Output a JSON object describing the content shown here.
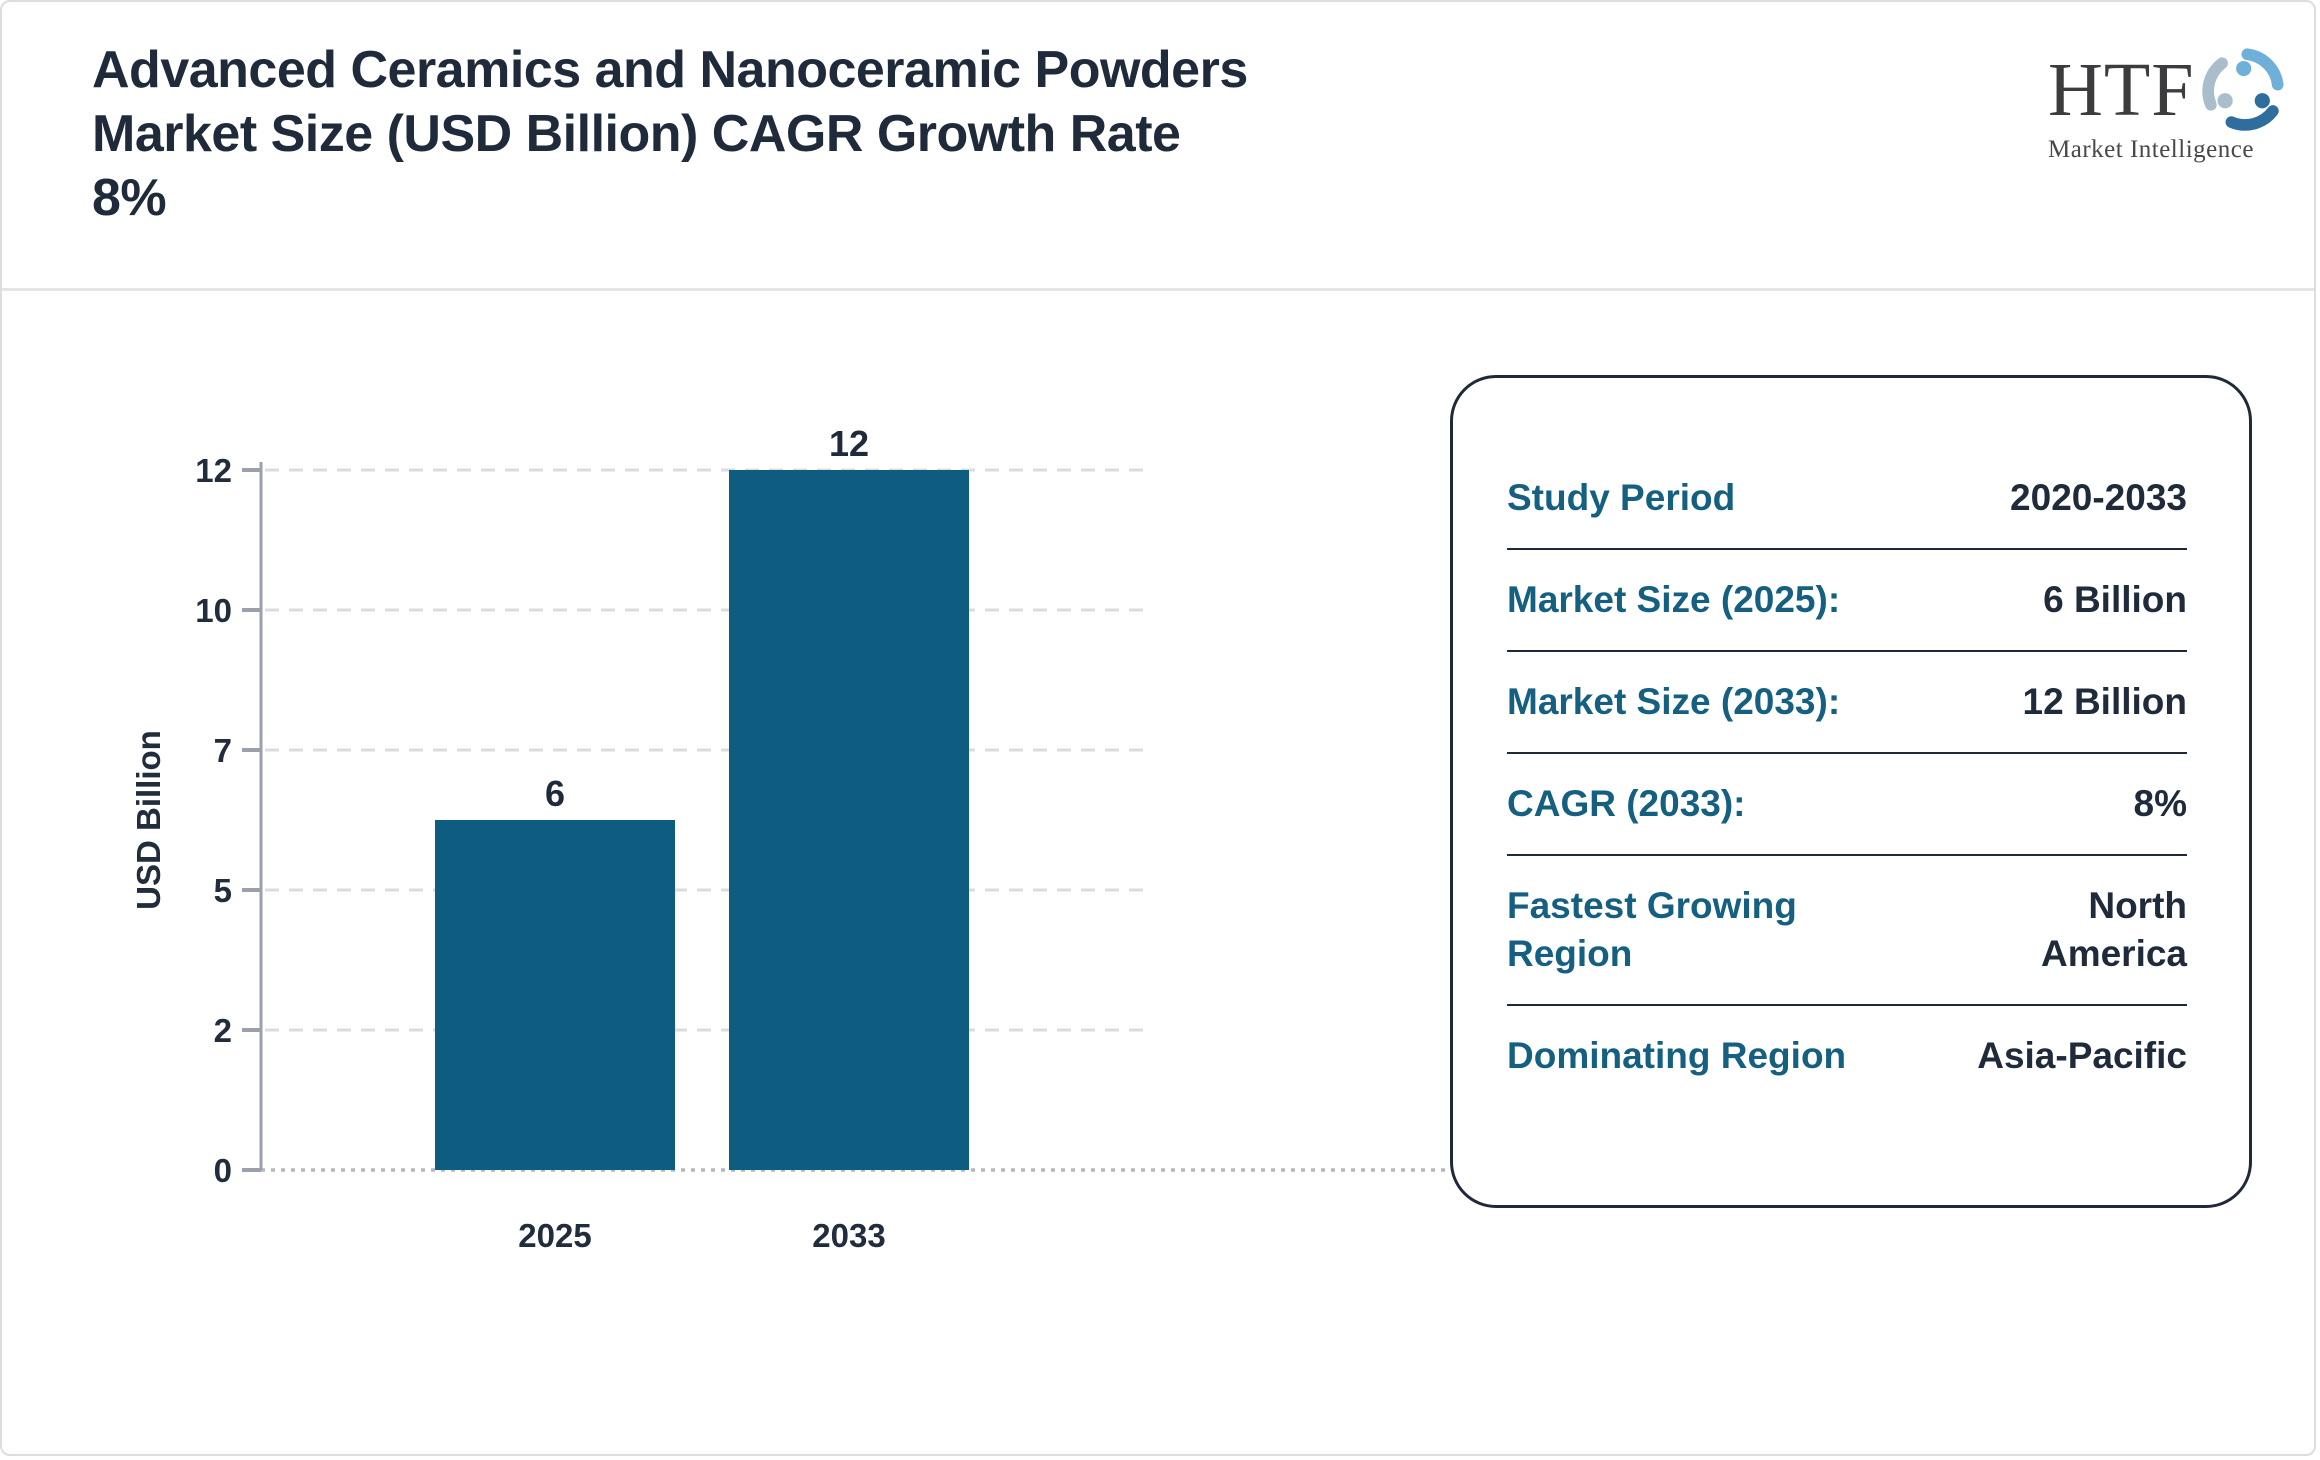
{
  "header": {
    "title_lines": [
      "Advanced Ceramics and Nanoceramic Powders",
      "Market Size (USD Billion) CAGR Growth Rate",
      "8%"
    ],
    "logo": {
      "brand": "HTF",
      "tagline": "Market Intelligence",
      "icon": "swirl-figures-icon"
    }
  },
  "chart_data": {
    "type": "bar",
    "title": "",
    "categories": [
      "2025",
      "2033"
    ],
    "values": [
      6,
      12
    ],
    "value_labels": [
      "6",
      "12"
    ],
    "xlabel": "",
    "ylabel": "USD Billion",
    "yticks": [
      0,
      2,
      5,
      7,
      10,
      12
    ],
    "ylim": [
      0,
      12
    ],
    "grid": "horizontal-dashed",
    "legend": "none",
    "bar_color": "#0e5c80"
  },
  "info_card": {
    "rows": [
      {
        "label": "Study Period",
        "value": "2020-2033"
      },
      {
        "label": "Market Size (2025):",
        "value": "6 Billion"
      },
      {
        "label": "Market Size (2033):",
        "value": "12 Billion"
      },
      {
        "label": "CAGR (2033):",
        "value": "8%"
      },
      {
        "label": "Fastest Growing Region",
        "value": "North America"
      },
      {
        "label": "Dominating Region",
        "value": "Asia-Pacific"
      }
    ]
  },
  "colors": {
    "bar": "#0e5c80",
    "card_label": "#155f81",
    "text_navy": "#1f2a3a",
    "axis_gray": "#9aa1ac",
    "gridline": "#dbdcdf",
    "header_divider": "#e4e5e9",
    "logo_light_blue": "#6fb0d9",
    "logo_dark_blue": "#2e6d9e",
    "logo_gray_blue": "#a9bdcb"
  }
}
